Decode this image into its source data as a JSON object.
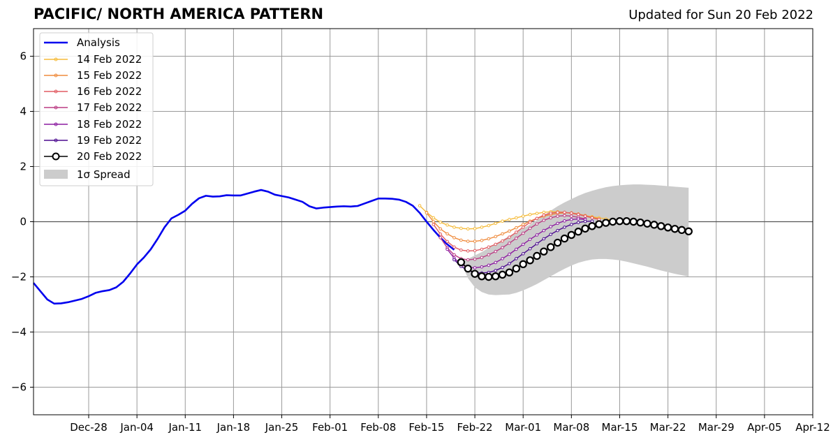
{
  "header": {
    "title": "PACIFIC/ NORTH AMERICA PATTERN",
    "subtitle": "Updated for Sun 20 Feb 2022"
  },
  "colors": {
    "analysis": "#0000ee",
    "spread": "#cccccc",
    "grid": "#9a9a9a",
    "zero_line": "#555555"
  },
  "chart_data": {
    "type": "line",
    "title": "PACIFIC/ NORTH AMERICA PATTERN",
    "xlabel": "",
    "ylabel": "",
    "x_axis": "date (days relative to Dec 20, 2021 start of axis)",
    "xlim": [
      "2021-12-20",
      "2022-04-12"
    ],
    "ylim": [
      -7,
      7
    ],
    "grid": true,
    "legend_position": "top-left",
    "x_tick_labels": [
      "Dec-28",
      "Jan-04",
      "Jan-11",
      "Jan-18",
      "Jan-25",
      "Feb-01",
      "Feb-08",
      "Feb-15",
      "Feb-22",
      "Mar-01",
      "Mar-08",
      "Mar-15",
      "Mar-22",
      "Mar-29",
      "Apr-05",
      "Apr-12"
    ],
    "x_tick_dates": [
      "2021-12-28",
      "2022-01-04",
      "2022-01-11",
      "2022-01-18",
      "2022-01-25",
      "2022-02-01",
      "2022-02-08",
      "2022-02-15",
      "2022-02-22",
      "2022-03-01",
      "2022-03-08",
      "2022-03-15",
      "2022-03-22",
      "2022-03-29",
      "2022-04-05",
      "2022-04-12"
    ],
    "y_ticks": [
      -6,
      -4,
      -2,
      0,
      2,
      4,
      6
    ],
    "y_tick_labels": [
      "−6",
      "−4",
      "−2",
      "0",
      "2",
      "4",
      "6"
    ],
    "analysis": {
      "name": "Analysis",
      "color": "#0000ee",
      "start_date": "2021-12-20",
      "values": [
        -2.22,
        -2.52,
        -2.82,
        -2.97,
        -2.96,
        -2.92,
        -2.86,
        -2.8,
        -2.7,
        -2.58,
        -2.52,
        -2.48,
        -2.38,
        -2.18,
        -1.88,
        -1.55,
        -1.3,
        -1.0,
        -0.62,
        -0.2,
        0.12,
        0.25,
        0.4,
        0.65,
        0.85,
        0.94,
        0.91,
        0.92,
        0.96,
        0.95,
        0.95,
        1.02,
        1.09,
        1.15,
        1.09,
        0.98,
        0.93,
        0.88,
        0.8,
        0.72,
        0.56,
        0.48,
        0.51,
        0.53,
        0.55,
        0.56,
        0.55,
        0.57,
        0.66,
        0.75,
        0.84,
        0.84,
        0.83,
        0.8,
        0.72,
        0.58,
        0.32,
        0.0,
        -0.3,
        -0.58,
        -0.82,
        -1.02
      ]
    },
    "forecasts": [
      {
        "name": "14 Feb 2022",
        "color": "#f5bb3a",
        "start_date": "2022-02-14",
        "values": [
          0.58,
          0.34,
          0.14,
          -0.02,
          -0.12,
          -0.2,
          -0.24,
          -0.26,
          -0.25,
          -0.2,
          -0.14,
          -0.06,
          0.02,
          0.08,
          0.14,
          0.2,
          0.26,
          0.3,
          0.34,
          0.36,
          0.36,
          0.34,
          0.3,
          0.26,
          0.22,
          0.18,
          0.14,
          0.1,
          0.06
        ]
      },
      {
        "name": "15 Feb 2022",
        "color": "#ef8b3d",
        "start_date": "2022-02-15",
        "values": [
          0.32,
          0.0,
          -0.26,
          -0.44,
          -0.58,
          -0.67,
          -0.71,
          -0.71,
          -0.68,
          -0.62,
          -0.54,
          -0.44,
          -0.34,
          -0.22,
          -0.1,
          0.02,
          0.12,
          0.2,
          0.26,
          0.3,
          0.32,
          0.32,
          0.28,
          0.22,
          0.16,
          0.1
        ]
      },
      {
        "name": "16 Feb 2022",
        "color": "#e15b62",
        "start_date": "2022-02-16",
        "values": [
          -0.1,
          -0.45,
          -0.72,
          -0.92,
          -1.03,
          -1.06,
          -1.05,
          -1.0,
          -0.92,
          -0.82,
          -0.7,
          -0.56,
          -0.38,
          -0.2,
          -0.02,
          0.12,
          0.24,
          0.31,
          0.34,
          0.34,
          0.31,
          0.26,
          0.2,
          0.14,
          0.08
        ]
      },
      {
        "name": "17 Feb 2022",
        "color": "#bb3c84",
        "start_date": "2022-02-17",
        "values": [
          -0.58,
          -0.95,
          -1.2,
          -1.34,
          -1.38,
          -1.36,
          -1.3,
          -1.2,
          -1.08,
          -0.94,
          -0.78,
          -0.6,
          -0.42,
          -0.24,
          -0.08,
          0.05,
          0.14,
          0.2,
          0.22,
          0.2,
          0.16,
          0.1
        ]
      },
      {
        "name": "18 Feb 2022",
        "color": "#8c1ca0",
        "start_date": "2022-02-18",
        "values": [
          -1.0,
          -1.32,
          -1.55,
          -1.66,
          -1.67,
          -1.64,
          -1.58,
          -1.48,
          -1.34,
          -1.18,
          -1.0,
          -0.82,
          -0.64,
          -0.48,
          -0.32,
          -0.18,
          -0.06,
          0.03,
          0.08,
          0.1,
          0.08
        ]
      },
      {
        "name": "19 Feb 2022",
        "color": "#4b0a8f",
        "start_date": "2022-02-19",
        "values": [
          -1.38,
          -1.62,
          -1.77,
          -1.84,
          -1.86,
          -1.84,
          -1.77,
          -1.66,
          -1.52,
          -1.34,
          -1.16,
          -0.98,
          -0.8,
          -0.62,
          -0.46,
          -0.32,
          -0.2,
          -0.1,
          -0.03,
          0.01,
          0.02
        ]
      }
    ],
    "current_forecast": {
      "name": "20 Feb 2022",
      "line_color": "#000000",
      "marker_face": "#ffffff",
      "start_date": "2022-02-20",
      "values": [
        -1.47,
        -1.7,
        -1.89,
        -1.98,
        -2.0,
        -1.98,
        -1.92,
        -1.84,
        -1.7,
        -1.54,
        -1.4,
        -1.24,
        -1.08,
        -0.92,
        -0.76,
        -0.61,
        -0.48,
        -0.36,
        -0.25,
        -0.16,
        -0.09,
        -0.04,
        0.0,
        0.02,
        0.02,
        0.0,
        -0.03,
        -0.07,
        -0.11,
        -0.16,
        -0.21,
        -0.26,
        -0.3,
        -0.35
      ]
    },
    "spread": {
      "name": "1σ Spread",
      "color": "#cccccc",
      "start_date": "2022-02-20",
      "upper": [
        -1.47,
        -1.35,
        -1.22,
        -1.1,
        -0.95,
        -0.8,
        -0.66,
        -0.52,
        -0.38,
        -0.24,
        -0.1,
        0.06,
        0.22,
        0.4,
        0.56,
        0.7,
        0.82,
        0.94,
        1.04,
        1.12,
        1.19,
        1.25,
        1.29,
        1.32,
        1.34,
        1.35,
        1.35,
        1.34,
        1.33,
        1.31,
        1.29,
        1.27,
        1.25,
        1.23
      ],
      "lower": [
        -1.47,
        -2.05,
        -2.38,
        -2.55,
        -2.64,
        -2.66,
        -2.65,
        -2.64,
        -2.58,
        -2.49,
        -2.38,
        -2.26,
        -2.12,
        -1.98,
        -1.84,
        -1.71,
        -1.59,
        -1.49,
        -1.42,
        -1.37,
        -1.35,
        -1.35,
        -1.37,
        -1.4,
        -1.45,
        -1.51,
        -1.57,
        -1.63,
        -1.7,
        -1.77,
        -1.83,
        -1.89,
        -1.94,
        -1.99
      ]
    },
    "legend": {
      "analysis_label": "Analysis",
      "f14_label": "14 Feb 2022",
      "f15_label": "15 Feb 2022",
      "f16_label": "16 Feb 2022",
      "f17_label": "17 Feb 2022",
      "f18_label": "18 Feb 2022",
      "f19_label": "19 Feb 2022",
      "f20_label": "20 Feb 2022",
      "spread_label": "1σ Spread"
    }
  }
}
